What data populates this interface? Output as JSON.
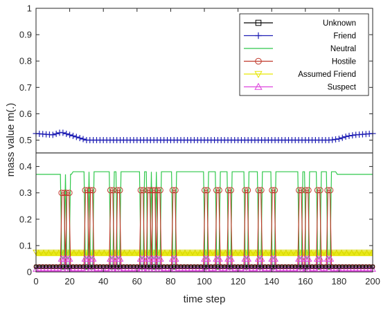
{
  "chart_data": {
    "type": "line",
    "xlabel": "time step",
    "ylabel": "mass value m(.)",
    "xlim": [
      0,
      200
    ],
    "ylim": [
      0,
      1
    ],
    "xticks": [
      0,
      20,
      40,
      60,
      80,
      100,
      120,
      140,
      160,
      180,
      200
    ],
    "yticks": [
      0,
      0.1,
      0.2,
      0.3,
      0.4,
      0.5,
      0.6,
      0.7,
      0.8,
      0.9,
      1
    ],
    "ytick_labels": [
      "0",
      "0.1",
      "0.2",
      "0.3",
      "0.4",
      "0.5",
      "0.6",
      "0.7",
      "0.8",
      "0.9",
      "1"
    ],
    "grid": false,
    "legend_position": "top-right",
    "hostile_spike_steps": [
      16,
      19,
      30,
      33,
      45,
      49,
      63,
      67,
      70,
      73,
      82,
      101,
      108,
      115,
      125,
      133,
      141,
      157,
      161,
      168,
      174
    ],
    "series": [
      {
        "name": "Unknown",
        "color": "#000000",
        "marker": "square",
        "x": [
          0,
          20,
          40,
          60,
          80,
          100,
          120,
          140,
          160,
          180,
          200
        ],
        "y": [
          0.02,
          0.02,
          0.02,
          0.02,
          0.02,
          0.02,
          0.02,
          0.02,
          0.02,
          0.02,
          0.02
        ]
      },
      {
        "name": "Friend",
        "color": "#1f1fb4",
        "marker": "plus",
        "x": [
          0,
          10,
          15,
          20,
          25,
          30,
          50,
          80,
          110,
          140,
          170,
          175,
          180,
          185,
          190,
          200
        ],
        "y": [
          0.525,
          0.52,
          0.53,
          0.52,
          0.51,
          0.5,
          0.5,
          0.5,
          0.5,
          0.5,
          0.5,
          0.5,
          0.505,
          0.515,
          0.52,
          0.525
        ]
      },
      {
        "name": "Neutral",
        "color": "#2ec84a",
        "marker": "none",
        "baseline": 0.37,
        "plateau": 0.38,
        "plateau_range": [
          22,
          178
        ],
        "spike_min": 0.01
      },
      {
        "name": "Hostile",
        "color": "#c0392b",
        "marker": "circle",
        "baseline": 0.025,
        "peak": 0.31,
        "first_peaks": 0.3
      },
      {
        "name": "Assumed Friend",
        "color": "#e6e600",
        "marker": "triangle-down",
        "band": [
          0.06,
          0.08
        ]
      },
      {
        "name": "Suspect",
        "color": "#dd44dd",
        "marker": "triangle-up",
        "baseline": 0.005,
        "spike": 0.05
      }
    ]
  }
}
